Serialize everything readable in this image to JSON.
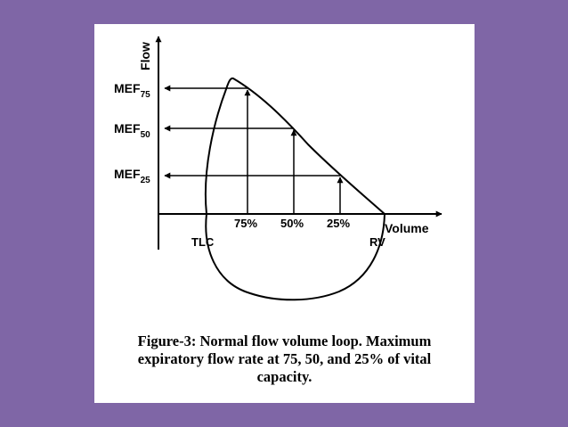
{
  "colors": {
    "background": "#7f66a6",
    "card": "#ffffff",
    "ink": "#000000"
  },
  "figure": {
    "axis_labels": {
      "y": "Flow",
      "x": "Volume"
    },
    "flow_markers": [
      {
        "base": "MEF",
        "sub": "75"
      },
      {
        "base": "MEF",
        "sub": "50"
      },
      {
        "base": "MEF",
        "sub": "25"
      }
    ],
    "volume_markers": [
      "75%",
      "50%",
      "25%"
    ],
    "endpoints": {
      "left": "TLC",
      "right": "RV"
    },
    "caption": {
      "line1": "Figure-3: Normal flow volume loop.  Maximum",
      "line2": "expiratory flow rate at 75, 50, and 25% of vital",
      "line3": "capacity."
    }
  }
}
